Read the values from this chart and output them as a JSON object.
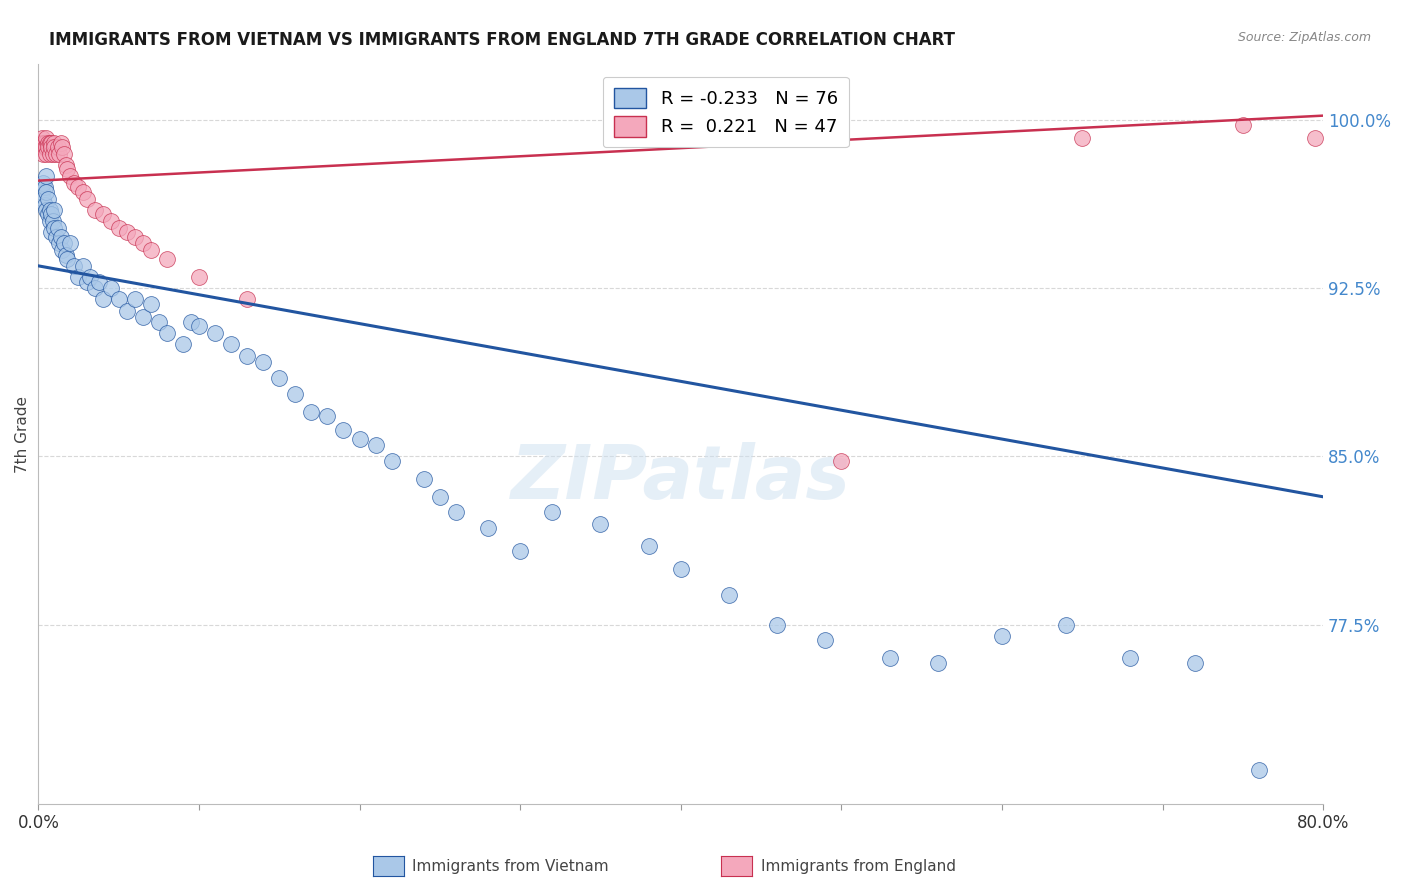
{
  "title": "IMMIGRANTS FROM VIETNAM VS IMMIGRANTS FROM ENGLAND 7TH GRADE CORRELATION CHART",
  "source": "Source: ZipAtlas.com",
  "ylabel": "7th Grade",
  "y_ticks": [
    0.775,
    0.85,
    0.925,
    1.0
  ],
  "y_tick_labels": [
    "77.5%",
    "85.0%",
    "92.5%",
    "100.0%"
  ],
  "x_range": [
    0.0,
    0.8
  ],
  "y_range": [
    0.695,
    1.025
  ],
  "x_ticks": [
    0.0,
    0.1,
    0.2,
    0.3,
    0.4,
    0.5,
    0.6,
    0.7,
    0.8
  ],
  "x_tick_labels": [
    "0.0%",
    "",
    "",
    "",
    "",
    "",
    "",
    "",
    "80.0%"
  ],
  "legend1_label": "R = -0.233   N = 76",
  "legend2_label": "R =  0.221   N = 47",
  "legend1_face": "#aac8e8",
  "legend2_face": "#f4a8bc",
  "line1_color": "#2255a0",
  "line2_color": "#c83050",
  "grid_color": "#d8d8d8",
  "bg_color": "#ffffff",
  "ytick_color": "#4488cc",
  "watermark": "ZIPatlas",
  "vietnam_x": [
    0.002,
    0.003,
    0.003,
    0.004,
    0.004,
    0.005,
    0.005,
    0.005,
    0.006,
    0.006,
    0.007,
    0.007,
    0.008,
    0.008,
    0.009,
    0.01,
    0.01,
    0.011,
    0.012,
    0.013,
    0.014,
    0.015,
    0.016,
    0.017,
    0.018,
    0.02,
    0.022,
    0.025,
    0.028,
    0.03,
    0.032,
    0.035,
    0.038,
    0.04,
    0.045,
    0.05,
    0.055,
    0.06,
    0.065,
    0.07,
    0.075,
    0.08,
    0.09,
    0.095,
    0.1,
    0.11,
    0.12,
    0.13,
    0.14,
    0.15,
    0.16,
    0.17,
    0.18,
    0.19,
    0.2,
    0.21,
    0.22,
    0.24,
    0.25,
    0.26,
    0.28,
    0.3,
    0.32,
    0.35,
    0.38,
    0.4,
    0.43,
    0.46,
    0.49,
    0.53,
    0.56,
    0.6,
    0.64,
    0.68,
    0.72,
    0.76
  ],
  "vietnam_y": [
    0.968,
    0.972,
    0.965,
    0.97,
    0.962,
    0.975,
    0.968,
    0.96,
    0.965,
    0.958,
    0.96,
    0.955,
    0.958,
    0.95,
    0.955,
    0.96,
    0.952,
    0.948,
    0.952,
    0.945,
    0.948,
    0.942,
    0.945,
    0.94,
    0.938,
    0.945,
    0.935,
    0.93,
    0.935,
    0.928,
    0.93,
    0.925,
    0.928,
    0.92,
    0.925,
    0.92,
    0.915,
    0.92,
    0.912,
    0.918,
    0.91,
    0.905,
    0.9,
    0.91,
    0.908,
    0.905,
    0.9,
    0.895,
    0.892,
    0.885,
    0.878,
    0.87,
    0.868,
    0.862,
    0.858,
    0.855,
    0.848,
    0.84,
    0.832,
    0.825,
    0.818,
    0.808,
    0.825,
    0.82,
    0.81,
    0.8,
    0.788,
    0.775,
    0.768,
    0.76,
    0.758,
    0.77,
    0.775,
    0.76,
    0.758,
    0.71
  ],
  "england_x": [
    0.001,
    0.002,
    0.002,
    0.003,
    0.003,
    0.004,
    0.004,
    0.005,
    0.005,
    0.005,
    0.006,
    0.006,
    0.007,
    0.007,
    0.008,
    0.008,
    0.009,
    0.01,
    0.01,
    0.011,
    0.012,
    0.013,
    0.014,
    0.015,
    0.016,
    0.017,
    0.018,
    0.02,
    0.022,
    0.025,
    0.028,
    0.03,
    0.035,
    0.04,
    0.045,
    0.05,
    0.055,
    0.06,
    0.065,
    0.07,
    0.08,
    0.1,
    0.13,
    0.5,
    0.65,
    0.75,
    0.795
  ],
  "england_y": [
    0.99,
    0.992,
    0.988,
    0.99,
    0.985,
    0.99,
    0.988,
    0.992,
    0.988,
    0.985,
    0.99,
    0.988,
    0.99,
    0.985,
    0.99,
    0.988,
    0.985,
    0.99,
    0.988,
    0.985,
    0.988,
    0.985,
    0.99,
    0.988,
    0.985,
    0.98,
    0.978,
    0.975,
    0.972,
    0.97,
    0.968,
    0.965,
    0.96,
    0.958,
    0.955,
    0.952,
    0.95,
    0.948,
    0.945,
    0.942,
    0.938,
    0.93,
    0.92,
    0.848,
    0.992,
    0.998,
    0.992
  ],
  "trendline1_x": [
    0.0,
    0.8
  ],
  "trendline1_y": [
    0.935,
    0.832
  ],
  "trendline2_x": [
    0.0,
    0.8
  ],
  "trendline2_y": [
    0.973,
    1.002
  ]
}
